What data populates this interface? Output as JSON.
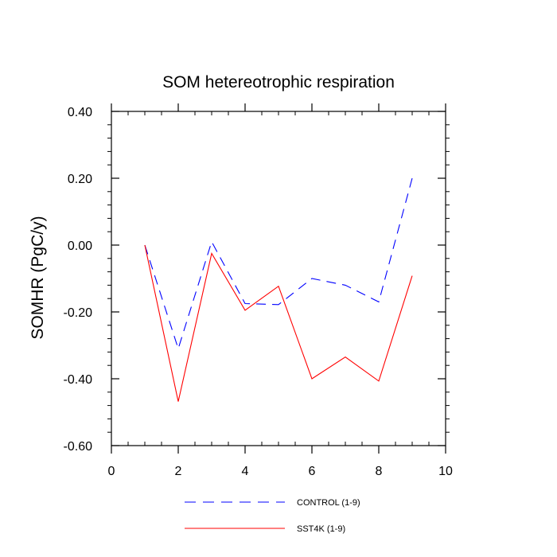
{
  "chart_data": {
    "type": "line",
    "title": "SOM hetereotrophic respiration",
    "xlabel": "",
    "ylabel": "SOMHR  (PgC/y)",
    "xlim": [
      0,
      10
    ],
    "ylim": [
      -0.6,
      0.4
    ],
    "xticks": [
      0,
      2,
      4,
      6,
      8,
      10
    ],
    "xtick_labels": [
      "0",
      "2",
      "4",
      "6",
      "8",
      "10"
    ],
    "yticks": [
      -0.6,
      -0.4,
      -0.2,
      0.0,
      0.2,
      0.4
    ],
    "ytick_labels": [
      "-0.60",
      "-0.40",
      "-0.20",
      "0.00",
      "0.20",
      "0.40"
    ],
    "legend_position": "bottom-center",
    "series": [
      {
        "name": "CONTROL (1-9)",
        "color": "#0000ff",
        "style": "dashed",
        "x": [
          1,
          2,
          3,
          4,
          5,
          6,
          7,
          8,
          9
        ],
        "values": [
          0.0,
          -0.31,
          0.01,
          -0.175,
          -0.178,
          -0.1,
          -0.12,
          -0.17,
          0.2
        ]
      },
      {
        "name": "SST4K (1-9)",
        "color": "#ff0000",
        "style": "solid",
        "x": [
          1,
          2,
          3,
          4,
          5,
          6,
          7,
          8,
          9
        ],
        "values": [
          0.0,
          -0.468,
          -0.025,
          -0.195,
          -0.123,
          -0.4,
          -0.335,
          -0.407,
          -0.092
        ]
      }
    ]
  }
}
